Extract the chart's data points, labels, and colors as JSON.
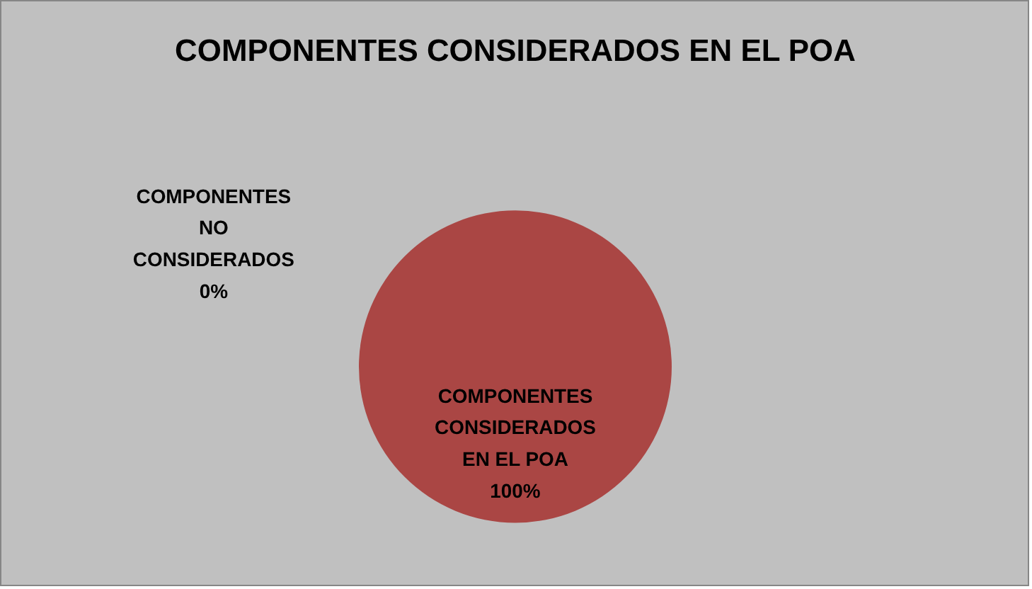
{
  "chart_data": {
    "type": "pie",
    "title": "COMPONENTES CONSIDERADOS EN EL POA",
    "categories": [
      "COMPONENTES NO CONSIDERADOS",
      "COMPONENTES CONSIDERADOS EN EL POA"
    ],
    "values": [
      0,
      100
    ],
    "colors": [
      "#4f81bd",
      "#aa4644"
    ],
    "value_labels": [
      "0%",
      "100%"
    ]
  }
}
